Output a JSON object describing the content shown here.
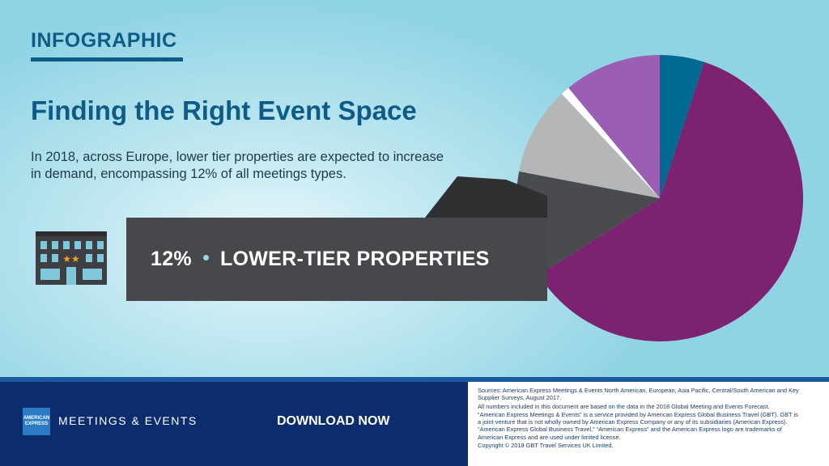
{
  "header": {
    "kicker": "INFOGRAPHIC",
    "title": "Finding the Right Event Space",
    "lede": "In 2018, across Europe, lower tier properties are expected to increase in demand, encompassing 12% of all meetings types."
  },
  "callout": {
    "value": "12%",
    "label": "LOWER-TIER PROPERTIES",
    "icon": "hotel-building-icon"
  },
  "chart_data": {
    "type": "pie",
    "title": "",
    "slices": [
      {
        "value": 5,
        "color": "#006a93"
      },
      {
        "value": 61,
        "color": "#7b2270"
      },
      {
        "value": 12,
        "color": "#4a4b4e",
        "label": "LOWER-TIER PROPERTIES",
        "highlighted": true
      },
      {
        "value": 10,
        "color": "#b4b6b7"
      },
      {
        "value": 1,
        "color": "#ffffff"
      },
      {
        "value": 11,
        "color": "#9a5fb5"
      }
    ]
  },
  "footer": {
    "logo_text": "AMERICAN EXPRESS",
    "brand": "MEETINGS & EVENTS",
    "cta": "DOWNLOAD NOW",
    "fine_print": [
      "Sources: American Express Meetings & Events North American, European, Asia Pacific, Central/South American and Key Supplier Surveys, August 2017.",
      "All numbers included in this document are based on the data in the 2018 Global Meeting and Events Forecast.",
      "“American Express Meetings & Events” is a service provided by American Express Global Business Travel (GBT). GBT is a joint venture that is not wholly owned by American Express Company or any of its subsidiaries (American Express). “American Express Global Business Travel,” “American Express” and the American Express logo are trademarks of American Express and are used under limited license.",
      "Copyright © 2018 GBT Travel Services UK Limited."
    ]
  },
  "colors": {
    "brand_blue": "#0e5c86",
    "footer_navy": "#0b2d6e",
    "banner_gray": "#47484b"
  }
}
